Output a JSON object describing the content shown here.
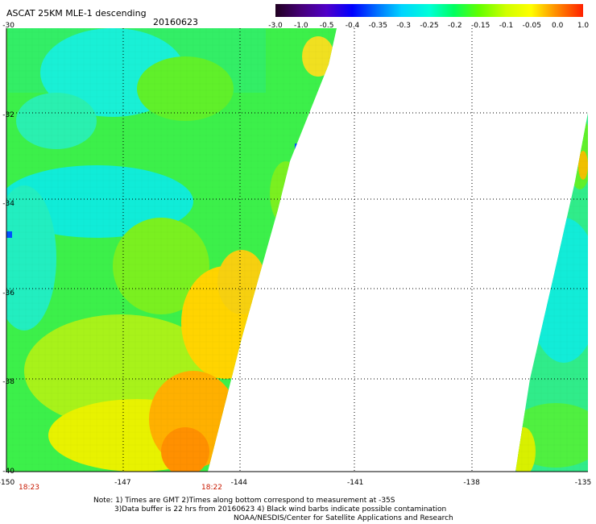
{
  "header": {
    "title": "ASCAT 25KM MLE-1 descending",
    "date": "20160623"
  },
  "colorbar": {
    "tick_labels": [
      "-3.0",
      "-1.0",
      "-0.5",
      "-0.4",
      "-0.35",
      "-0.3",
      "-0.25",
      "-0.2",
      "-0.15",
      "-0.1",
      "-0.05",
      "0.0",
      "1.0"
    ],
    "colors": [
      "#200020",
      "#460078",
      "#5000c8",
      "#0000ff",
      "#0070ff",
      "#00d4ff",
      "#00ffd8",
      "#00ff60",
      "#60ff00",
      "#d0ff00",
      "#ffff00",
      "#ff9000",
      "#ff2000"
    ]
  },
  "axes": {
    "lat_labels": [
      "-30",
      "-32",
      "-34",
      "-36",
      "-38",
      "-40"
    ],
    "lon_labels": [
      "-150",
      "-147",
      "-144",
      "-141",
      "-138",
      "-135"
    ],
    "lat_range": [
      -30,
      -40
    ],
    "lon_range": [
      -150,
      -135
    ],
    "grid": "dotted"
  },
  "times": [
    "18:23",
    "18:22"
  ],
  "notes": {
    "line1": "Note: 1) Times are GMT 2)Times along bottom correspond to measurement at -35S",
    "line2": "3)Data buffer is 22 hrs from 20160623 4) Black wind barbs indicate possible contamination",
    "line3": "NOAA/NESDIS/Center for Satellite Applications and Research"
  }
}
